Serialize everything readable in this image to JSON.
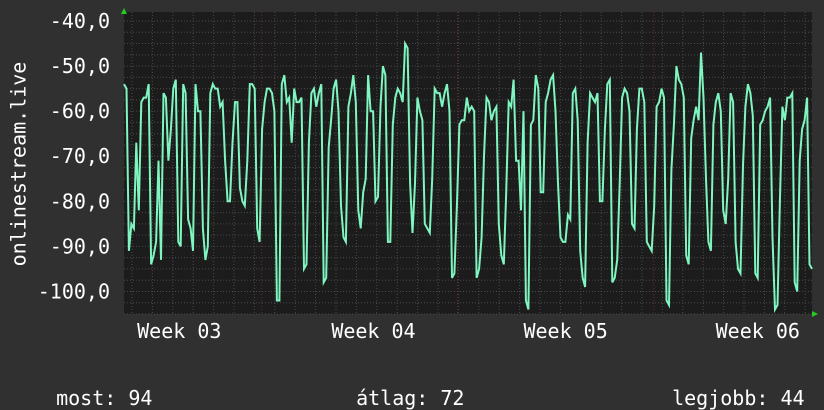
{
  "chart_data": {
    "type": "line",
    "ylabel": "onlinestream.live",
    "y_ticks": [
      "-40,0",
      "-50,0",
      "-60,0",
      "-70,0",
      "-80,0",
      "-90,0",
      "-100,0"
    ],
    "y_tick_values": [
      -40,
      -50,
      -60,
      -70,
      -80,
      -90,
      -100
    ],
    "ylim": [
      -105,
      -38
    ],
    "x_ticks": [
      "Week 03",
      "Week 04",
      "Week 05",
      "Week 06",
      "Week"
    ],
    "x_tick_positions": [
      0.082,
      0.37,
      0.655,
      0.94,
      1.222
    ],
    "grid": true,
    "colors": {
      "background": "#303030",
      "plot": "#1c1c1c",
      "line": "#7ff5c0",
      "grid": "#4a4a4a",
      "week_line": "#6a2a2a",
      "axis_arrow": "#22cc22"
    },
    "series": [
      {
        "values": [
          -54,
          -55,
          -91,
          -85,
          -86,
          -67,
          -82,
          -58,
          -57,
          -57,
          -54,
          -94,
          -92,
          -89,
          -71,
          -93,
          -56,
          -57,
          -71,
          -64,
          -55,
          -53,
          -89,
          -90,
          -54,
          -56,
          -84,
          -86,
          -91,
          -54,
          -60,
          -60,
          -86,
          -93,
          -90,
          -56,
          -54,
          -55,
          -55,
          -59,
          -58,
          -71,
          -80,
          -80,
          -67,
          -58,
          -58,
          -77,
          -80,
          -81,
          -71,
          -54,
          -54,
          -55,
          -86,
          -89,
          -64,
          -58,
          -55,
          -55,
          -56,
          -60,
          -102,
          -102,
          -54,
          -52,
          -58,
          -57,
          -67,
          -55,
          -58,
          -58,
          -57,
          -95,
          -94,
          -67,
          -56,
          -55,
          -59,
          -56,
          -54,
          -98,
          -97,
          -68,
          -62,
          -55,
          -53,
          -60,
          -81,
          -88,
          -89,
          -59,
          -56,
          -52,
          -58,
          -82,
          -86,
          -78,
          -75,
          -52,
          -60,
          -60,
          -80,
          -79,
          -59,
          -50,
          -52,
          -89,
          -89,
          -63,
          -57,
          -55,
          -56,
          -58,
          -45,
          -46,
          -76,
          -87,
          -76,
          -57,
          -60,
          -62,
          -85,
          -86,
          -87,
          -75,
          -55,
          -56,
          -56,
          -59,
          -56,
          -54,
          -60,
          -97,
          -96,
          -81,
          -63,
          -62,
          -62,
          -57,
          -60,
          -59,
          -60,
          -97,
          -95,
          -88,
          -70,
          -57,
          -58,
          -62,
          -60,
          -59,
          -85,
          -92,
          -94,
          -78,
          -58,
          -59,
          -53,
          -71,
          -71,
          -82,
          -60,
          -102,
          -104,
          -63,
          -62,
          -52,
          -55,
          -78,
          -78,
          -58,
          -56,
          -53,
          -52,
          -60,
          -76,
          -88,
          -89,
          -89,
          -83,
          -84,
          -56,
          -55,
          -62,
          -91,
          -97,
          -99,
          -67,
          -56,
          -57,
          -58,
          -56,
          -80,
          -80,
          -64,
          -54,
          -53,
          -98,
          -97,
          -93,
          -76,
          -57,
          -55,
          -56,
          -60,
          -85,
          -86,
          -64,
          -55,
          -55,
          -58,
          -89,
          -90,
          -91,
          -81,
          -59,
          -58,
          -55,
          -57,
          -102,
          -103,
          -73,
          -63,
          -50,
          -53,
          -54,
          -57,
          -92,
          -94,
          -66,
          -62,
          -59,
          -62,
          -47,
          -57,
          -75,
          -89,
          -91,
          -63,
          -58,
          -56,
          -60,
          -82,
          -85,
          -75,
          -56,
          -58,
          -89,
          -95,
          -96,
          -72,
          -59,
          -54,
          -56,
          -61,
          -96,
          -97,
          -63,
          -62,
          -60,
          -59,
          -57,
          -88,
          -104,
          -103,
          -80,
          -59,
          -62,
          -57,
          -57,
          -56,
          -98,
          -100,
          -71,
          -64,
          -62,
          -57,
          -94,
          -95
        ],
        "_": null
      }
    ]
  },
  "stats": {
    "current_label": "most:",
    "current_value": "94",
    "average_label": "átlag:",
    "average_value": "72",
    "best_label": "legjobb:",
    "best_value": "44"
  }
}
